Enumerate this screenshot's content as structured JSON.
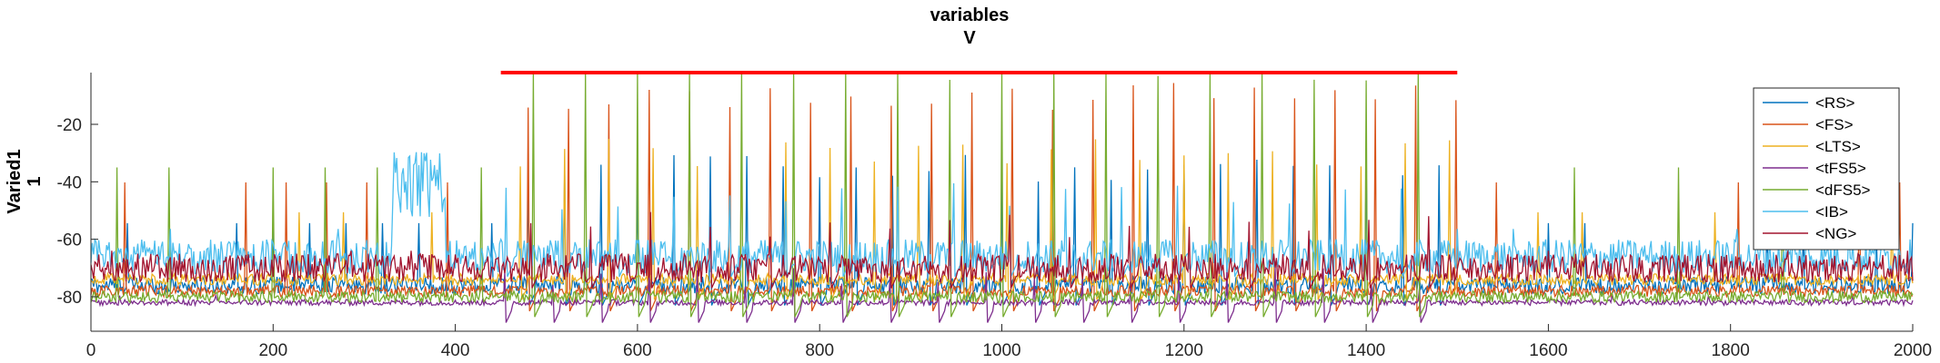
{
  "chart_data": {
    "type": "line",
    "title": [
      "variables",
      "V"
    ],
    "ylabel": [
      "Varied1",
      "1"
    ],
    "xlabel": "",
    "xlim": [
      0,
      2000
    ],
    "ylim": [
      -92,
      -2
    ],
    "xticks": [
      "0",
      "200",
      "400",
      "600",
      "800",
      "1000",
      "1200",
      "1400",
      "1600",
      "1800",
      "2000"
    ],
    "yticks": [
      "-20",
      "-40",
      "-60",
      "-80"
    ],
    "grid": false,
    "legend_position": "top-right",
    "highlight_bar": {
      "x_start": 450,
      "x_end": 1500,
      "y": -2,
      "color": "#ff0000"
    },
    "series": [
      {
        "name": "<RS>",
        "color": "#0072bd",
        "baseline": -76,
        "spike_peak": -40,
        "noise": 3
      },
      {
        "name": "<FS>",
        "color": "#d95319",
        "baseline": -78,
        "spike_peak": -15,
        "noise": 2
      },
      {
        "name": "<LTS>",
        "color": "#edb120",
        "baseline": -74,
        "spike_peak": -35,
        "noise": 2
      },
      {
        "name": "<tFS5>",
        "color": "#7e2f8e",
        "baseline": -82,
        "spike_peak": -78,
        "noise": 1
      },
      {
        "name": "<dFS5>",
        "color": "#77ac30",
        "baseline": -80,
        "spike_peak": -5,
        "noise": 2
      },
      {
        "name": "<IB>",
        "color": "#4dbeee",
        "baseline": -66,
        "spike_peak": -50,
        "noise": 6
      },
      {
        "name": "<NG>",
        "color": "#a2142f",
        "baseline": -70,
        "spike_peak": -60,
        "noise": 5
      }
    ]
  }
}
